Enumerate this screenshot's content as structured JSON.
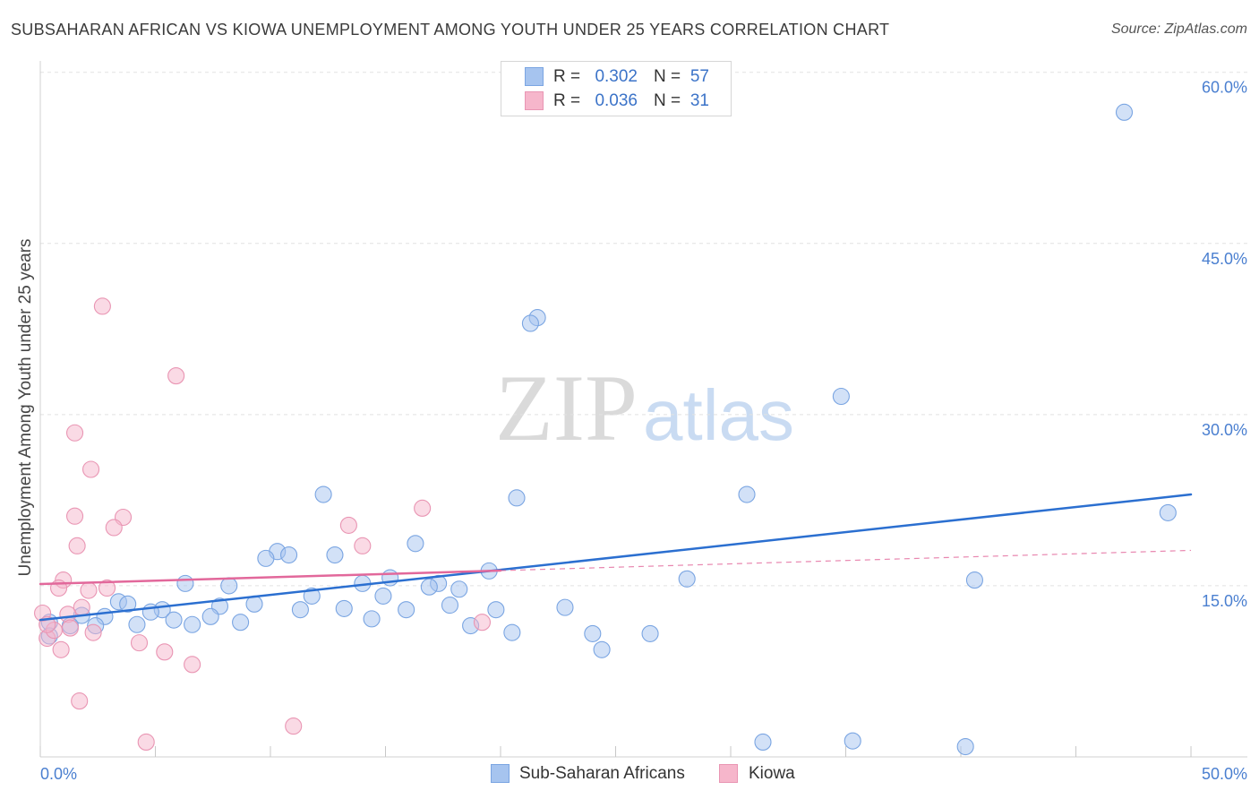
{
  "header": {
    "source": "Source: ZipAtlas.com"
  },
  "watermark": {
    "zip": "ZIP",
    "atlas": "atlas"
  },
  "colors": {
    "tick_label": "#4a7fd0",
    "legend_value": "#3b73c8",
    "grid": "#e2e2e2",
    "axis": "#d0d0d0"
  },
  "chart_data": {
    "type": "scatter",
    "title": "SUBSAHARAN AFRICAN VS KIOWA UNEMPLOYMENT AMONG YOUTH UNDER 25 YEARS CORRELATION CHART",
    "xlabel": "",
    "ylabel": "Unemployment Among Youth under 25 years",
    "xlim": [
      0,
      52.45
    ],
    "ylim": [
      0,
      61.0
    ],
    "grid": true,
    "x_ticks": [
      0,
      5,
      10,
      15,
      20,
      25,
      30,
      35,
      40,
      45,
      50
    ],
    "x_tick_labels": [
      {
        "value": 0,
        "label": "0.0%"
      },
      {
        "value": 50,
        "label": "50.0%"
      }
    ],
    "y_ticks": [
      {
        "value": 15,
        "label": "15.0%"
      },
      {
        "value": 30,
        "label": "30.0%"
      },
      {
        "value": 45,
        "label": "45.0%"
      },
      {
        "value": 60,
        "label": "60.0%"
      }
    ],
    "legend_labels": {
      "r": "R =",
      "n": "N ="
    },
    "series": [
      {
        "name": "Sub-Saharan Africans",
        "r": "0.302",
        "n": "57",
        "fill": "#a6c4ef",
        "stroke": "#7aa5e2",
        "line": "#2b6fd0",
        "trend": {
          "x0": 0,
          "y0": 12.0,
          "x1": 50,
          "y1": 23.0,
          "solid_until": 50
        },
        "points": [
          [
            47.1,
            56.5
          ],
          [
            21.6,
            38.5
          ],
          [
            21.3,
            38.0
          ],
          [
            34.8,
            31.6
          ],
          [
            12.3,
            23.0
          ],
          [
            20.7,
            22.7
          ],
          [
            30.7,
            23.0
          ],
          [
            49.0,
            21.4
          ],
          [
            16.3,
            18.7
          ],
          [
            10.3,
            18.0
          ],
          [
            9.8,
            17.4
          ],
          [
            10.8,
            17.7
          ],
          [
            12.8,
            17.7
          ],
          [
            19.5,
            16.3
          ],
          [
            15.2,
            15.7
          ],
          [
            28.1,
            15.6
          ],
          [
            40.6,
            15.5
          ],
          [
            6.3,
            15.2
          ],
          [
            8.2,
            15.0
          ],
          [
            17.3,
            15.2
          ],
          [
            16.9,
            14.9
          ],
          [
            14.0,
            15.2
          ],
          [
            18.2,
            14.7
          ],
          [
            11.8,
            14.1
          ],
          [
            14.9,
            14.1
          ],
          [
            3.4,
            13.6
          ],
          [
            3.8,
            13.4
          ],
          [
            9.3,
            13.4
          ],
          [
            17.8,
            13.3
          ],
          [
            22.8,
            13.1
          ],
          [
            7.8,
            13.2
          ],
          [
            5.3,
            12.9
          ],
          [
            13.2,
            13.0
          ],
          [
            15.9,
            12.9
          ],
          [
            19.8,
            12.9
          ],
          [
            11.3,
            12.9
          ],
          [
            4.8,
            12.7
          ],
          [
            1.8,
            12.4
          ],
          [
            2.8,
            12.3
          ],
          [
            7.4,
            12.3
          ],
          [
            5.8,
            12.0
          ],
          [
            14.4,
            12.1
          ],
          [
            4.2,
            11.6
          ],
          [
            6.6,
            11.6
          ],
          [
            8.7,
            11.8
          ],
          [
            2.4,
            11.5
          ],
          [
            0.4,
            11.8
          ],
          [
            1.3,
            11.5
          ],
          [
            18.7,
            11.5
          ],
          [
            20.5,
            10.9
          ],
          [
            24.0,
            10.8
          ],
          [
            26.5,
            10.8
          ],
          [
            0.4,
            10.6
          ],
          [
            24.4,
            9.4
          ],
          [
            31.4,
            1.3
          ],
          [
            35.3,
            1.4
          ],
          [
            40.2,
            0.9
          ]
        ]
      },
      {
        "name": "Kiowa",
        "r": "0.036",
        "n": "31",
        "fill": "#f6b6cb",
        "stroke": "#e995b3",
        "line": "#e2689b",
        "trend": {
          "x0": 0,
          "y0": 15.15,
          "x1": 50,
          "y1": 18.1,
          "solid_until": 20
        },
        "points": [
          [
            2.7,
            39.5
          ],
          [
            5.9,
            33.4
          ],
          [
            1.5,
            28.4
          ],
          [
            2.2,
            25.2
          ],
          [
            1.5,
            21.1
          ],
          [
            3.6,
            21.0
          ],
          [
            3.2,
            20.1
          ],
          [
            13.4,
            20.3
          ],
          [
            16.6,
            21.8
          ],
          [
            1.6,
            18.5
          ],
          [
            14.0,
            18.5
          ],
          [
            1.0,
            15.5
          ],
          [
            0.8,
            14.8
          ],
          [
            2.1,
            14.6
          ],
          [
            2.9,
            14.8
          ],
          [
            1.8,
            13.1
          ],
          [
            1.2,
            12.5
          ],
          [
            0.1,
            12.6
          ],
          [
            19.2,
            11.8
          ],
          [
            2.3,
            10.9
          ],
          [
            0.3,
            10.4
          ],
          [
            0.6,
            11.1
          ],
          [
            4.3,
            10.0
          ],
          [
            0.9,
            9.4
          ],
          [
            5.4,
            9.2
          ],
          [
            6.6,
            8.1
          ],
          [
            1.7,
            4.9
          ],
          [
            11.0,
            2.7
          ],
          [
            4.6,
            1.3
          ],
          [
            1.3,
            11.3
          ],
          [
            0.3,
            11.6
          ]
        ]
      }
    ]
  }
}
